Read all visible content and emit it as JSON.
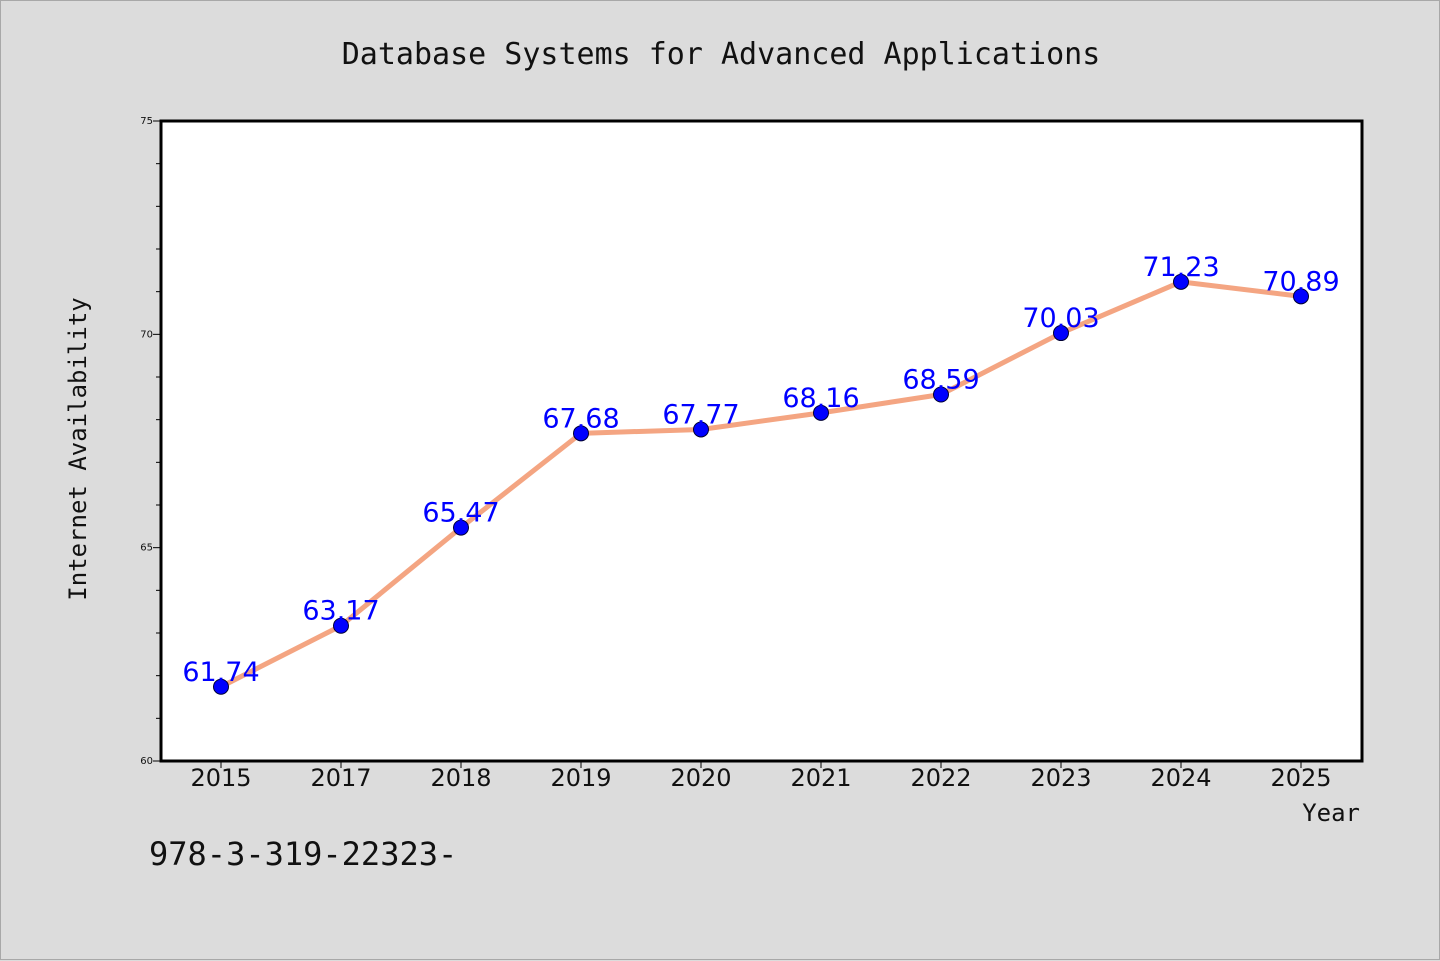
{
  "chart_data": {
    "type": "line",
    "title": "Database Systems for Advanced Applications",
    "xlabel": "Year",
    "ylabel": "Internet Availability",
    "categories": [
      "2015",
      "2017",
      "2018",
      "2019",
      "2020",
      "2021",
      "2022",
      "2023",
      "2024",
      "2025"
    ],
    "series": [
      {
        "values": [
          61.74,
          63.17,
          65.47,
          67.68,
          67.77,
          68.16,
          68.59,
          70.03,
          71.23,
          70.89
        ],
        "data_labels": [
          "61.74",
          "63.17",
          "65.47",
          "67.68",
          "67.77",
          "68.16",
          "68.59",
          "70.03",
          "71.23",
          "70.89"
        ]
      }
    ],
    "ylim": [
      60,
      75
    ],
    "yticks": [
      60,
      65,
      70,
      75
    ],
    "ytick_labels": [
      "60",
      "65",
      "70",
      "75"
    ],
    "grid": false,
    "colors": {
      "line": "#f4a582",
      "marker": "#0000ff",
      "label": "#0000ff",
      "background": "#dcdcdc",
      "plot_bg": "#ffffff"
    }
  },
  "footnote": "978-3-319-22323-"
}
